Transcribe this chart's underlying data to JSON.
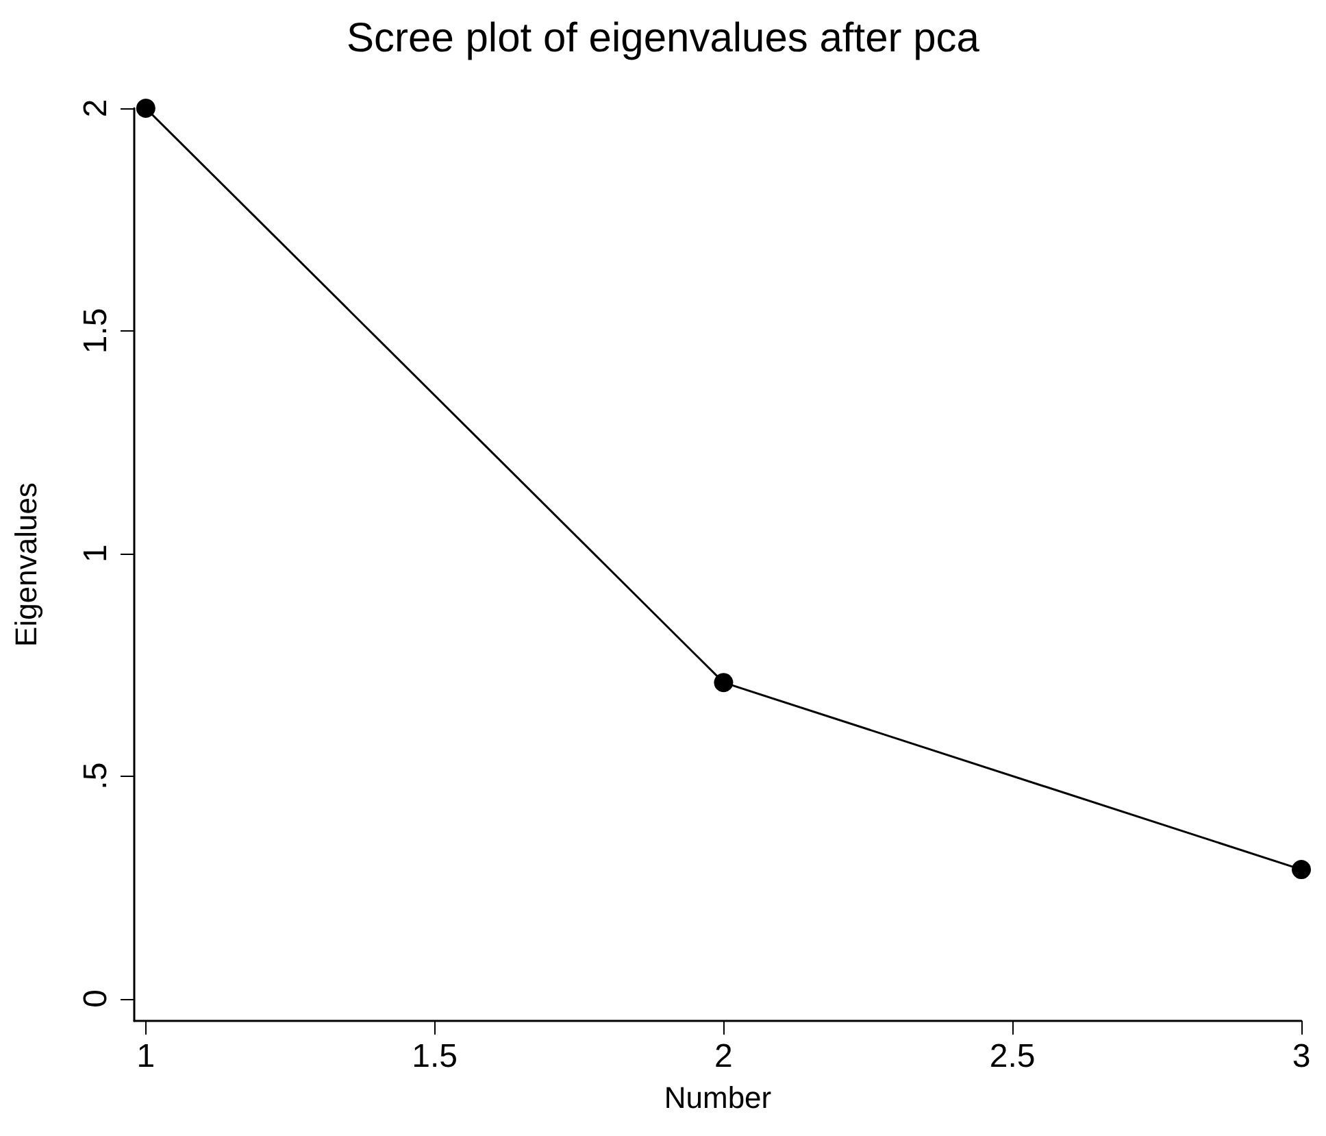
{
  "chart_data": {
    "type": "line",
    "title": "Scree plot of eigenvalues after pca",
    "xlabel": "Number",
    "ylabel": "Eigenvalues",
    "x": [
      1,
      2,
      3
    ],
    "series": [
      {
        "color": "#000000",
        "values": [
          2.0,
          0.71,
          0.29
        ]
      }
    ],
    "xlim": [
      0.98,
      3.0
    ],
    "xticks": [
      1,
      1.5,
      2,
      2.5,
      3
    ],
    "ylim": [
      -0.05,
      2.0
    ],
    "yticks": [
      0,
      {
        "value": 0.5,
        "label": ".5"
      },
      1,
      1.5,
      2
    ],
    "marker": "circle",
    "line_style": "solid"
  }
}
